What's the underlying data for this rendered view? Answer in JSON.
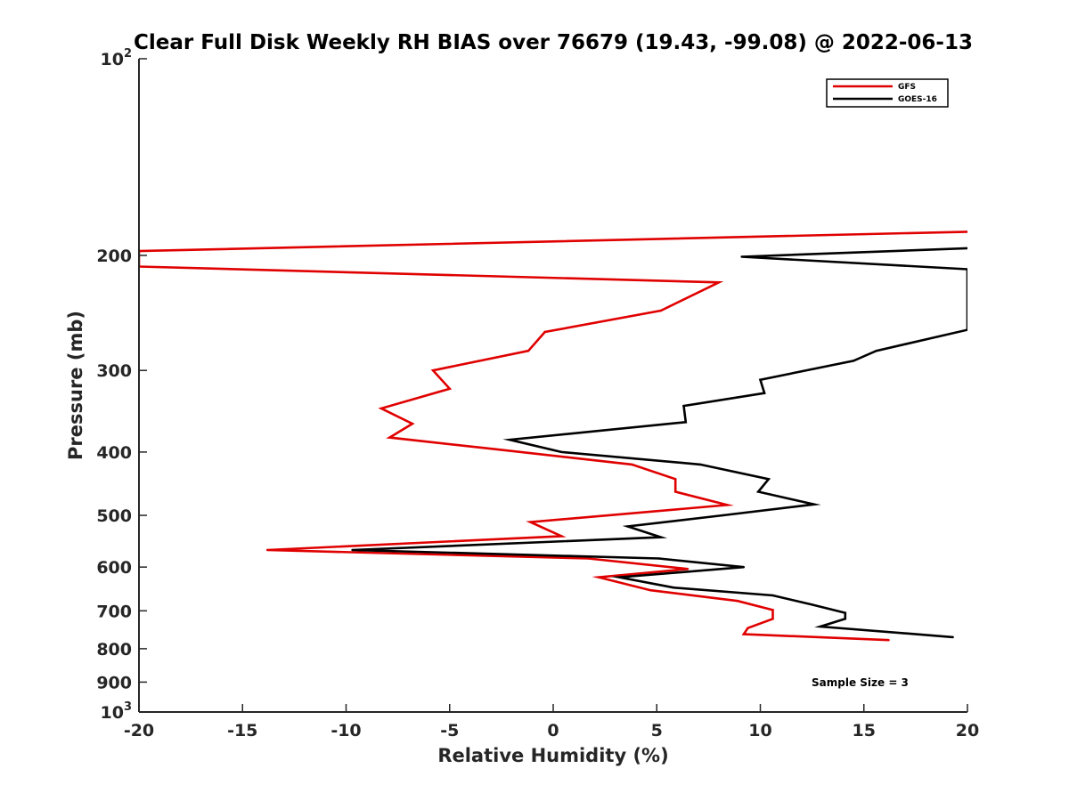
{
  "chart_data": {
    "type": "line",
    "title": "Clear Full Disk Weekly RH BIAS over 76679 (19.43, -99.08) @ 2022-06-13",
    "xlabel": "Relative Humidity (%)",
    "ylabel": "Pressure (mb)",
    "xlim": [
      -20,
      20
    ],
    "ylim": [
      100,
      1000
    ],
    "y_scale": "log",
    "y_reversed": true,
    "grid": false,
    "legend_position": "top-right",
    "x_ticks": [
      "-20",
      "-15",
      "-10",
      "-5",
      "0",
      "5",
      "10",
      "15",
      "20"
    ],
    "y_ticks": [
      {
        "value": 100,
        "base": "10",
        "exp": "2"
      },
      {
        "value": 200,
        "label": "200"
      },
      {
        "value": 300,
        "label": "300"
      },
      {
        "value": 400,
        "label": "400"
      },
      {
        "value": 500,
        "label": "500"
      },
      {
        "value": 600,
        "label": "600"
      },
      {
        "value": 700,
        "label": "700"
      },
      {
        "value": 800,
        "label": "800"
      },
      {
        "value": 900,
        "label": "900"
      },
      {
        "value": 1000,
        "base": "10",
        "exp": "3"
      }
    ],
    "series": [
      {
        "name": "GFS",
        "color": "#e00000",
        "x": [
          20,
          -20,
          -20,
          8,
          5.2,
          -0.4,
          -1.2,
          -5.8,
          -5.0,
          -8.3,
          -6.8,
          -7.9,
          -2.8,
          3.8,
          5.9,
          5.9,
          8.4,
          -1.1,
          0.4,
          -13.8,
          1.7,
          6.5,
          2.2,
          4.7,
          8.9,
          10.6,
          10.6,
          9.4,
          9.2,
          16.2
        ],
        "y": [
          184,
          197,
          208,
          220,
          243,
          262,
          280,
          300,
          320,
          343,
          362,
          380,
          396,
          418,
          440,
          460,
          482,
          512,
          538,
          565,
          582,
          604,
          622,
          651,
          676,
          698,
          720,
          744,
          760,
          776
        ]
      },
      {
        "name": "GOES-16",
        "color": "#000000",
        "x": [
          20,
          9.1,
          20,
          20,
          15.6,
          14.5,
          10.0,
          10.2,
          6.3,
          6.4,
          -2.1,
          0.4,
          7.1,
          10.4,
          9.9,
          12.6,
          8.2,
          3.6,
          5.2,
          -9.7,
          5.1,
          9.2,
          3.2,
          5.8,
          10.6,
          12.5,
          14.1,
          14.1,
          12.9,
          19.3
        ],
        "y": [
          195,
          201,
          210,
          260,
          280,
          290,
          310,
          325,
          340,
          360,
          383,
          400,
          418,
          440,
          460,
          481,
          500,
          520,
          540,
          565,
          582,
          600,
          622,
          645,
          663,
          685,
          705,
          720,
          740,
          768
        ]
      }
    ],
    "annotations": [
      "Sample Size = 3"
    ]
  }
}
